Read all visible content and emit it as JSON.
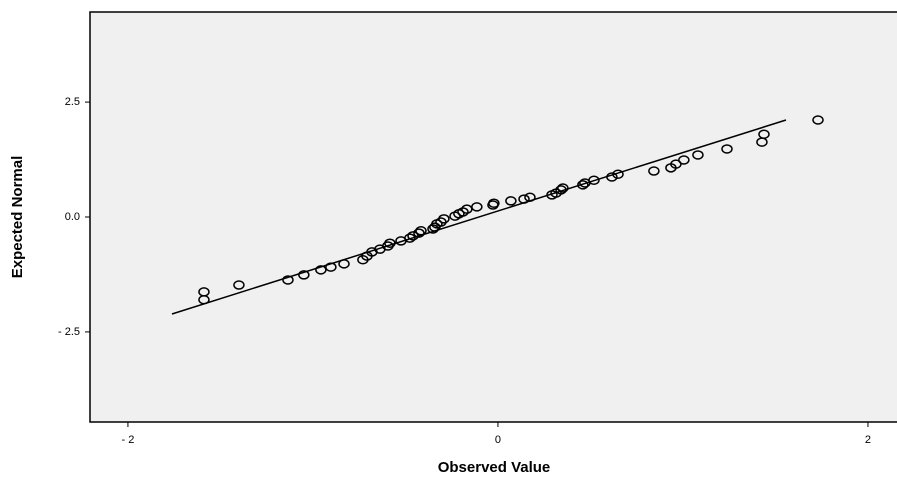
{
  "chart_data": {
    "type": "scatter",
    "x_label": "Observed Value",
    "y_label": "Expected Normal",
    "xlim": [
      -2.205,
      2.157
    ],
    "ylim": [
      -4.46,
      4.46
    ],
    "xticks": [
      {
        "value": -2,
        "label": "- 2"
      },
      0,
      2
    ],
    "yticks": [
      {
        "value": -2.5,
        "label": "- 2.5"
      },
      {
        "value": 0,
        "label": "0.0"
      },
      2.5
    ],
    "color": "#000000",
    "background": "#f0f0f0",
    "x": [
      -1.589,
      -1.589,
      -1.4,
      -1.135,
      -1.049,
      -0.957,
      -0.903,
      -0.832,
      -0.73,
      -0.708,
      -0.681,
      -0.638,
      -0.595,
      -0.584,
      -0.524,
      -0.476,
      -0.459,
      -0.427,
      -0.416,
      -0.351,
      -0.341,
      -0.33,
      -0.308,
      -0.292,
      -0.232,
      -0.211,
      -0.189,
      -0.168,
      -0.114,
      -0.027,
      -0.022,
      0.07,
      0.141,
      0.173,
      0.292,
      0.314,
      0.341,
      0.351,
      0.459,
      0.47,
      0.519,
      0.616,
      0.649,
      0.843,
      0.935,
      0.962,
      1.005,
      1.081,
      1.238,
      1.427,
      1.438,
      1.73
    ],
    "values": [
      -1.63,
      -1.8,
      -1.48,
      -1.37,
      -1.26,
      -1.15,
      -1.09,
      -1.02,
      -0.93,
      -0.85,
      -0.76,
      -0.7,
      -0.63,
      -0.57,
      -0.52,
      -0.46,
      -0.41,
      -0.35,
      -0.3,
      -0.26,
      -0.22,
      -0.15,
      -0.11,
      -0.04,
      0.02,
      0.07,
      0.11,
      0.17,
      0.22,
      0.26,
      0.3,
      0.35,
      0.39,
      0.43,
      0.48,
      0.52,
      0.59,
      0.63,
      0.7,
      0.74,
      0.8,
      0.87,
      0.93,
      1.0,
      1.07,
      1.15,
      1.24,
      1.35,
      1.48,
      1.63,
      1.8,
      2.11
    ],
    "reference_line": {
      "x": [
        -1.762,
        1.557
      ],
      "y": [
        -2.11,
        2.11
      ]
    }
  }
}
